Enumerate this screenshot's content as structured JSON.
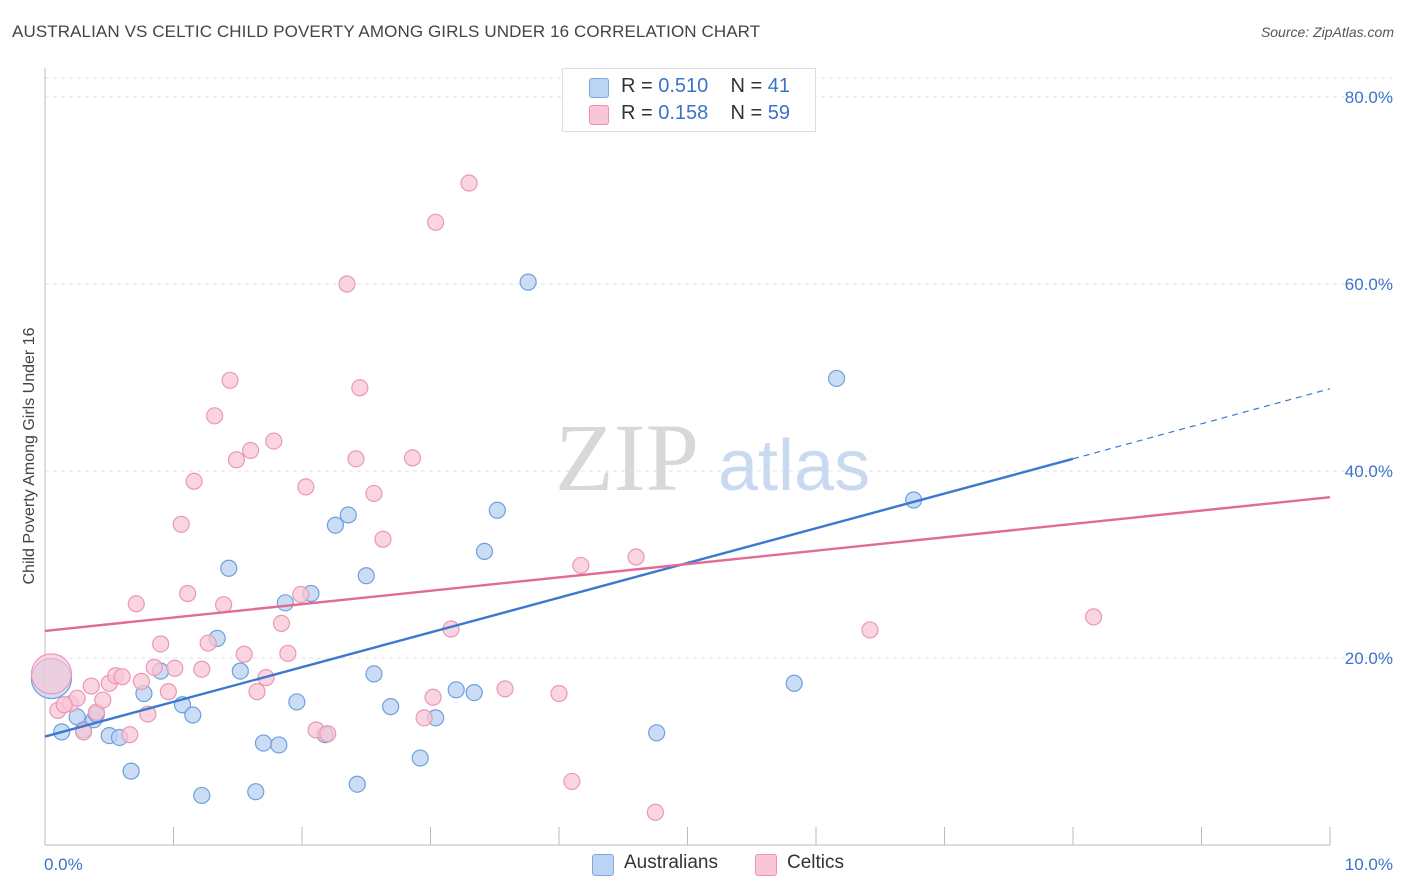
{
  "header": {
    "title": "AUSTRALIAN VS CELTIC CHILD POVERTY AMONG GIRLS UNDER 16 CORRELATION CHART",
    "source": "Source: ZipAtlas.com"
  },
  "legend": {
    "r_label": "R =",
    "n_label": "N =",
    "rows": [
      {
        "r": "0.510",
        "n": "41",
        "color": "#aac8f0"
      },
      {
        "r": "0.158",
        "n": "59",
        "color": "#f6b8cb"
      }
    ]
  },
  "bottom_legend": {
    "items": [
      {
        "label": "Australians",
        "color": "#aac8f0"
      },
      {
        "label": "Celtics",
        "color": "#f6b8cb"
      }
    ]
  },
  "watermark": {
    "zip": "ZIP",
    "atlas": "atlas"
  },
  "colors": {
    "blue": "#3b78d0",
    "pink": "#e06b97",
    "blue_fill": "#b9d2f2",
    "pink_fill": "#f8c6d6"
  },
  "chart_data": {
    "type": "scatter",
    "title": "AUSTRALIAN VS CELTIC CHILD POVERTY AMONG GIRLS UNDER 16 CORRELATION CHART",
    "xlabel": "",
    "ylabel": "Child Poverty Among Girls Under 16",
    "xlim": [
      0,
      10
    ],
    "ylim": [
      0,
      80
    ],
    "x_tick_labels": [
      "0.0%",
      "10.0%"
    ],
    "y_tick_labels": [
      "20.0%",
      "40.0%",
      "60.0%",
      "80.0%"
    ],
    "y_ticks": [
      20,
      40,
      60,
      80
    ],
    "grid": true,
    "series": [
      {
        "name": "Australians",
        "color": "#3b78d0",
        "points": [
          [
            0.05,
            17.8
          ],
          [
            0.13,
            12.1
          ],
          [
            0.25,
            13.7
          ],
          [
            0.3,
            12.3
          ],
          [
            0.38,
            13.4
          ],
          [
            0.5,
            11.7
          ],
          [
            0.58,
            11.5
          ],
          [
            0.67,
            7.9
          ],
          [
            0.77,
            16.2
          ],
          [
            0.9,
            18.6
          ],
          [
            1.07,
            15.0
          ],
          [
            1.15,
            13.9
          ],
          [
            1.22,
            5.3
          ],
          [
            1.34,
            22.1
          ],
          [
            1.43,
            29.6
          ],
          [
            1.52,
            18.6
          ],
          [
            1.64,
            5.7
          ],
          [
            1.7,
            10.9
          ],
          [
            1.82,
            10.7
          ],
          [
            1.87,
            25.9
          ],
          [
            1.96,
            15.3
          ],
          [
            2.07,
            26.9
          ],
          [
            2.18,
            11.8
          ],
          [
            2.26,
            34.2
          ],
          [
            2.36,
            35.3
          ],
          [
            2.43,
            6.5
          ],
          [
            2.5,
            28.8
          ],
          [
            2.56,
            18.3
          ],
          [
            2.69,
            14.8
          ],
          [
            2.92,
            9.3
          ],
          [
            3.04,
            13.6
          ],
          [
            3.2,
            16.6
          ],
          [
            3.34,
            16.3
          ],
          [
            3.42,
            31.4
          ],
          [
            3.52,
            35.8
          ],
          [
            3.76,
            60.2
          ],
          [
            4.76,
            12.0
          ],
          [
            5.83,
            17.3
          ],
          [
            6.16,
            49.9
          ],
          [
            6.76,
            36.9
          ],
          [
            0.4,
            14.0
          ]
        ],
        "trend": {
          "x": [
            0,
            8.0
          ],
          "y": [
            11.6,
            41.3
          ],
          "dashed_x": [
            8.0,
            10.0
          ],
          "dashed_y": [
            41.3,
            48.8
          ]
        }
      },
      {
        "name": "Celtics",
        "color": "#e06b97",
        "points": [
          [
            0.05,
            18.3
          ],
          [
            0.1,
            14.4
          ],
          [
            0.2,
            15.1
          ],
          [
            0.25,
            15.7
          ],
          [
            0.3,
            12.1
          ],
          [
            0.36,
            17.0
          ],
          [
            0.4,
            14.2
          ],
          [
            0.45,
            15.5
          ],
          [
            0.5,
            17.3
          ],
          [
            0.55,
            18.1
          ],
          [
            0.6,
            18.0
          ],
          [
            0.66,
            11.8
          ],
          [
            0.71,
            25.8
          ],
          [
            0.75,
            17.5
          ],
          [
            0.8,
            14.0
          ],
          [
            0.85,
            19.0
          ],
          [
            0.9,
            21.5
          ],
          [
            0.96,
            16.4
          ],
          [
            1.01,
            18.9
          ],
          [
            1.06,
            34.3
          ],
          [
            1.11,
            26.9
          ],
          [
            1.16,
            38.9
          ],
          [
            1.22,
            18.8
          ],
          [
            1.27,
            21.6
          ],
          [
            1.32,
            45.9
          ],
          [
            1.39,
            25.7
          ],
          [
            1.44,
            49.7
          ],
          [
            1.49,
            41.2
          ],
          [
            1.55,
            20.4
          ],
          [
            1.6,
            42.2
          ],
          [
            1.65,
            16.4
          ],
          [
            1.72,
            17.9
          ],
          [
            1.78,
            43.2
          ],
          [
            1.84,
            23.7
          ],
          [
            1.89,
            20.5
          ],
          [
            1.99,
            26.8
          ],
          [
            2.03,
            38.3
          ],
          [
            2.11,
            12.3
          ],
          [
            2.2,
            11.9
          ],
          [
            2.35,
            60.0
          ],
          [
            2.42,
            41.3
          ],
          [
            2.45,
            48.9
          ],
          [
            2.56,
            37.6
          ],
          [
            2.63,
            32.7
          ],
          [
            2.86,
            41.4
          ],
          [
            2.95,
            13.6
          ],
          [
            3.02,
            15.8
          ],
          [
            3.04,
            66.6
          ],
          [
            3.16,
            23.1
          ],
          [
            3.3,
            70.8
          ],
          [
            3.58,
            16.7
          ],
          [
            4.0,
            16.2
          ],
          [
            4.1,
            6.8
          ],
          [
            4.17,
            29.9
          ],
          [
            4.6,
            30.8
          ],
          [
            4.75,
            3.5
          ],
          [
            6.42,
            23.0
          ],
          [
            8.16,
            24.4
          ],
          [
            0.15,
            15.0
          ]
        ],
        "trend": {
          "x": [
            0,
            10.0
          ],
          "y": [
            22.9,
            37.2
          ]
        }
      }
    ]
  }
}
